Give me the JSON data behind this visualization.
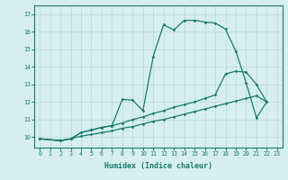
{
  "xlabel": "Humidex (Indice chaleur)",
  "bg_color": "#d6eef0",
  "grid_color": "#b8d8da",
  "line_color": "#1a7a6e",
  "xlim": [
    -0.5,
    23.5
  ],
  "ylim": [
    9.4,
    17.5
  ],
  "yticks": [
    10,
    11,
    12,
    13,
    14,
    15,
    16,
    17
  ],
  "xticks": [
    0,
    1,
    2,
    3,
    4,
    5,
    6,
    7,
    8,
    9,
    10,
    11,
    12,
    13,
    14,
    15,
    16,
    17,
    18,
    19,
    20,
    21,
    22,
    23
  ],
  "line1_x": [
    0,
    2,
    3,
    4,
    5,
    6,
    7,
    8,
    9,
    10,
    11,
    12,
    13,
    14,
    15,
    16,
    17,
    18,
    19,
    20,
    21,
    22
  ],
  "line1_y": [
    9.9,
    9.8,
    9.9,
    10.05,
    10.15,
    10.25,
    10.35,
    10.5,
    10.6,
    10.75,
    10.9,
    11.0,
    11.15,
    11.3,
    11.45,
    11.6,
    11.75,
    11.9,
    12.05,
    12.2,
    12.35,
    12.0
  ],
  "line2_x": [
    0,
    2,
    3,
    4,
    5,
    6,
    7,
    8,
    9,
    10,
    11,
    12,
    13,
    14,
    15,
    16,
    17,
    18,
    19,
    20,
    21,
    22
  ],
  "line2_y": [
    9.9,
    9.8,
    9.9,
    10.25,
    10.4,
    10.55,
    10.65,
    10.8,
    11.0,
    11.15,
    11.35,
    11.5,
    11.7,
    11.85,
    12.0,
    12.2,
    12.4,
    13.6,
    13.75,
    13.7,
    13.0,
    12.0
  ],
  "line3_x": [
    0,
    2,
    3,
    4,
    5,
    6,
    7,
    8,
    9,
    10,
    11,
    12,
    13,
    14,
    15,
    16,
    17,
    18,
    19,
    20,
    21,
    22
  ],
  "line3_y": [
    9.9,
    9.8,
    9.9,
    10.25,
    10.4,
    10.55,
    10.65,
    12.15,
    12.1,
    11.5,
    14.6,
    16.4,
    16.1,
    16.65,
    16.65,
    16.55,
    16.5,
    16.15,
    14.9,
    13.1,
    11.1,
    12.0
  ]
}
